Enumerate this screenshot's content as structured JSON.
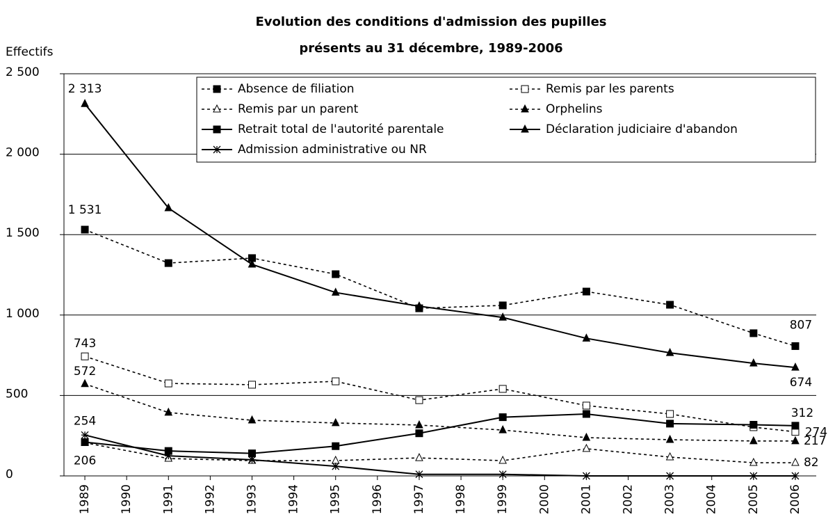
{
  "chart_data": {
    "type": "line",
    "title": [
      "Evolution des conditions d'admission des pupilles",
      "présents au 31 décembre, 1989-2006"
    ],
    "y_label": "Effectifs",
    "x": [
      1989,
      1991,
      1993,
      1995,
      1997,
      1999,
      2001,
      2003,
      2005,
      2006
    ],
    "xlim": [
      1988.5,
      2006.5
    ],
    "xticks": [
      1989,
      1990,
      1991,
      1992,
      1993,
      1994,
      1995,
      1996,
      1997,
      1998,
      1999,
      2000,
      2001,
      2002,
      2003,
      2004,
      2005,
      2006
    ],
    "ylim": [
      0,
      2500
    ],
    "yticks": [
      0,
      500,
      {
        "value": 1000,
        "label": "1 000"
      },
      {
        "value": 1500,
        "label": "1 500"
      },
      {
        "value": 2000,
        "label": "2 000"
      },
      {
        "value": 2500,
        "label": "2 500"
      }
    ],
    "grid": true,
    "legend": "top",
    "series": [
      {
        "name": "Absence de filiation",
        "color": "#000000",
        "dash": true,
        "marker": "square",
        "values": [
          1531,
          1323,
          1354,
          1254,
          1042,
          1060,
          1146,
          1064,
          887,
          807
        ],
        "value_labels": [
          "1 531",
          null,
          null,
          null,
          null,
          null,
          null,
          null,
          null,
          "807"
        ]
      },
      {
        "name": "Remis par les parents",
        "color": "#000000",
        "dash": true,
        "marker": "square-open",
        "values": [
          743,
          575,
          567,
          588,
          471,
          541,
          437,
          385,
          303,
          274
        ],
        "value_labels": [
          "743",
          null,
          null,
          null,
          null,
          null,
          null,
          null,
          null,
          "274"
        ]
      },
      {
        "name": "Remis par un parent",
        "color": "#000000",
        "dash": true,
        "marker": "triangle-open",
        "values": [
          206,
          108,
          95,
          95,
          112,
          95,
          169,
          117,
          82,
          82
        ],
        "value_labels": [
          "206",
          null,
          null,
          null,
          null,
          null,
          null,
          null,
          null,
          "82"
        ]
      },
      {
        "name": "Orphelins",
        "color": "#000000",
        "dash": true,
        "marker": "triangle",
        "values": [
          572,
          394,
          346,
          329,
          316,
          285,
          238,
          225,
          217,
          217
        ],
        "value_labels": [
          "572",
          null,
          null,
          null,
          null,
          null,
          null,
          null,
          null,
          "217"
        ]
      },
      {
        "name": "Retrait total de l'autorité parentale",
        "color": "#000000",
        "dash": false,
        "marker": "square",
        "values": [
          210,
          155,
          140,
          185,
          265,
          365,
          385,
          325,
          318,
          312
        ],
        "value_labels": [
          null,
          null,
          null,
          null,
          null,
          null,
          null,
          null,
          null,
          "312"
        ]
      },
      {
        "name": "Déclaration judiciaire d'abandon",
        "color": "#000000",
        "dash": false,
        "marker": "triangle",
        "values": [
          2313,
          1665,
          1315,
          1140,
          1055,
          985,
          855,
          765,
          700,
          674
        ],
        "value_labels": [
          "2 313",
          null,
          null,
          null,
          null,
          null,
          null,
          null,
          null,
          "674"
        ]
      },
      {
        "name": "Admission administrative ou NR",
        "color": "#000000",
        "dash": false,
        "marker": "star",
        "values": [
          254,
          125,
          100,
          60,
          10,
          10,
          0,
          0,
          0,
          0
        ],
        "value_labels": [
          "254",
          null,
          null,
          null,
          null,
          null,
          null,
          null,
          null,
          null
        ]
      }
    ]
  }
}
